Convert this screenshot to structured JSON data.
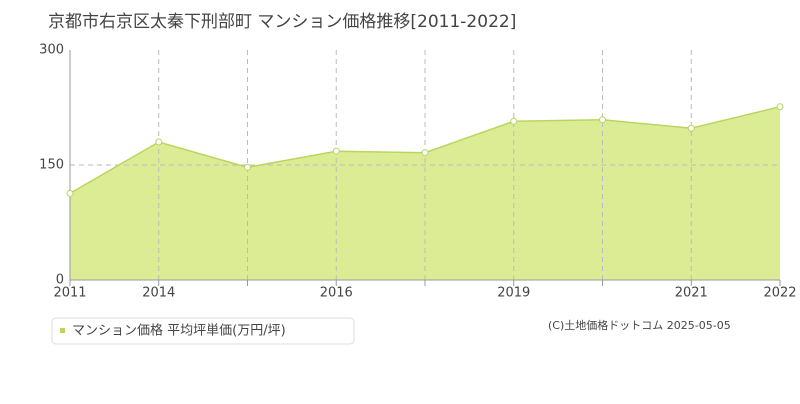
{
  "chart_data": {
    "type": "area",
    "title": "京都市右京区太秦下刑部町 マンション価格推移[2011-2022]",
    "categories": [
      "2011",
      "2014",
      null,
      "2016",
      null,
      "2019",
      null,
      "2021",
      "2022"
    ],
    "series": [
      {
        "name": "マンション価格 平均坪単価(万円/坪)",
        "color": "#b8d65e",
        "fill": "#dcec94",
        "values": [
          113,
          180,
          147,
          168,
          166,
          207,
          209,
          198,
          226
        ]
      }
    ],
    "ylim": [
      0,
      300
    ],
    "yticks": [
      0,
      150,
      300
    ],
    "grid": true,
    "copyright": "(C)土地価格ドットコム 2025-05-05"
  }
}
